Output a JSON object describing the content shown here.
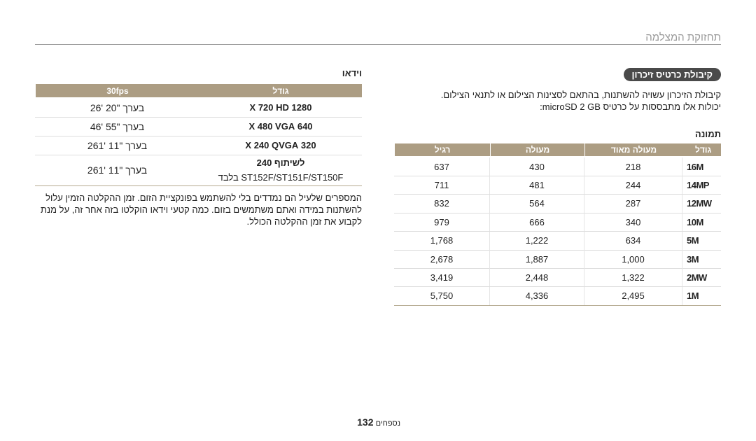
{
  "header": {
    "title": "תחזוקת המצלמה"
  },
  "capacity": {
    "heading": "קיבולת כרטיס זיכרון",
    "paragraph": [
      "קיבולת הזיכרון עשויה להשתנות, בהתאם לסצינות הצילום או לתנאי הצילום.",
      "יכולות אלו מתבססות על כרטיס microSD 2 GB:"
    ],
    "photo": {
      "label": "תמונה",
      "table": {
        "headers": [
          "גודל",
          "מעולה מאוד",
          "מעולה",
          "רגיל"
        ],
        "rows": [
          [
            "16M",
            "218",
            "430",
            "637"
          ],
          [
            "14MP",
            "244",
            "481",
            "711"
          ],
          [
            "12MW",
            "287",
            "564",
            "832"
          ],
          [
            "10M",
            "340",
            "666",
            "979"
          ],
          [
            "5M",
            "634",
            "1,222",
            "1,768"
          ],
          [
            "3M",
            "1,000",
            "1,887",
            "2,678"
          ],
          [
            "2MW",
            "1,322",
            "2,448",
            "3,419"
          ],
          [
            "1M",
            "2,495",
            "4,336",
            "5,750"
          ]
        ]
      }
    },
    "video": {
      "label": "וידאו",
      "table": {
        "headers": [
          "גודל",
          "30fps"
        ],
        "rows": [
          [
            "1280 X 720 HD",
            "26' 20\" בערך"
          ],
          [
            "640 X 480 VGA",
            "46' 55\" בערך"
          ],
          [
            "320 X 240 QVGA",
            "261' 11\" בערך"
          ],
          [
            "לשיתוף 240",
            "261' 11\" בערך"
          ]
        ],
        "row_note": "ST152F/ST151F/ST150F בלבד"
      },
      "note": "המספרים שלעיל הם נמדדים בלי להשתמש בפונקציית הזום. זמן ההקלטה הזמין עלול להשתנות במידה ואתם משתמשים בזום. כמה קטעי וידאו הוקלטו בזה אחר זה, על מנת לקבוע את זמן ההקלטה הכולל."
    }
  },
  "footer": {
    "section": "נספחים",
    "page": "132"
  }
}
